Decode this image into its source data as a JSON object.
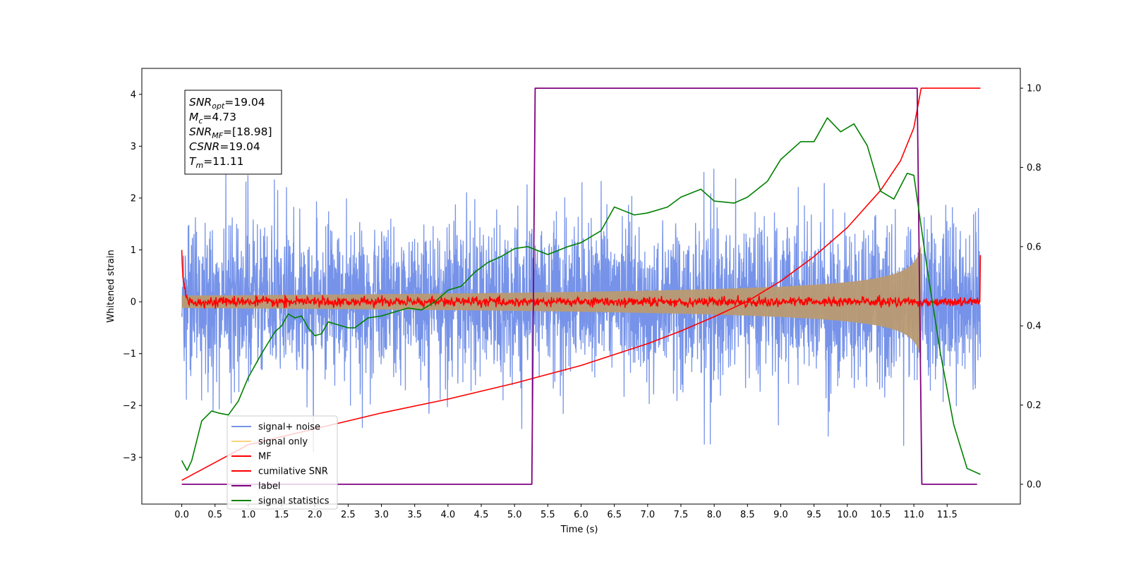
{
  "chart_data": {
    "type": "line",
    "title": "",
    "xlabel": "Time (s)",
    "ylabel": "Whitened strain",
    "ylabel_right": "",
    "xlim": [
      -0.6,
      12.6
    ],
    "ylim": [
      -3.9,
      4.5
    ],
    "ylim_right": [
      -0.05,
      1.05
    ],
    "x_ticks": [
      "0.0",
      "0.5",
      "1.0",
      "1.5",
      "2.0",
      "2.5",
      "3.0",
      "3.5",
      "4.0",
      "4.5",
      "5.0",
      "5.5",
      "6.0",
      "6.5",
      "7.0",
      "7.5",
      "8.0",
      "8.5",
      "9.0",
      "9.5",
      "10.0",
      "10.5",
      "11.0",
      "11.5"
    ],
    "y_ticks_left": [
      "−3",
      "−2",
      "−1",
      "0",
      "1",
      "2",
      "3",
      "4"
    ],
    "y_ticks_right": [
      "0.0",
      "0.2",
      "0.4",
      "0.6",
      "0.8",
      "1.0"
    ],
    "grid": false,
    "legend_position": "lower-left",
    "info_box": {
      "lines": [
        {
          "main": "SNR",
          "sub": "opt",
          "rest": "=19.04"
        },
        {
          "main": "M",
          "sub": "c",
          "rest": "=4.73"
        },
        {
          "main": "SNR",
          "sub": "MF",
          "rest": "=[18.98]"
        },
        {
          "main": "CSNR",
          "sub": "",
          "rest": "=19.04"
        },
        {
          "main": "T",
          "sub": "m",
          "rest": "=11.11"
        }
      ]
    },
    "series": [
      {
        "name": "signal+ noise",
        "color": "#4169e1",
        "axis": "left",
        "kind": "noise",
        "x_range": [
          0,
          12.0
        ],
        "envelope_low": -2.2,
        "envelope_high": 2.4
      },
      {
        "name": "signal only",
        "color": "#ffd480",
        "axis": "left",
        "kind": "chirp",
        "x_range": [
          0,
          11.11
        ],
        "amplitude_start": 0.12,
        "amplitude_end": 1.1
      },
      {
        "name": "MF",
        "color": "#ff0000",
        "axis": "left",
        "kind": "matched-filter",
        "x_range": [
          0,
          12.0
        ],
        "baseline": 0.0,
        "start_value": 1.0,
        "end_value": 0.9
      },
      {
        "name": "cumilative SNR",
        "color": "#ff0000",
        "axis": "right",
        "x": [
          0.0,
          1.0,
          2.0,
          3.0,
          4.0,
          5.0,
          6.0,
          7.0,
          7.5,
          8.0,
          8.5,
          9.0,
          9.5,
          10.0,
          10.5,
          10.8,
          11.0,
          11.11,
          11.5,
          12.0
        ],
        "y": [
          0.01,
          0.1,
          0.14,
          0.18,
          0.215,
          0.255,
          0.3,
          0.355,
          0.387,
          0.423,
          0.462,
          0.513,
          0.575,
          0.648,
          0.742,
          0.817,
          0.9,
          1.0,
          1.0,
          1.0
        ]
      },
      {
        "name": "label",
        "color": "#800080",
        "axis": "right",
        "x": [
          0.0,
          5.26,
          5.31,
          11.05,
          11.12,
          11.95
        ],
        "y": [
          0.0,
          0.0,
          1.0,
          1.0,
          0.0,
          0.0
        ]
      },
      {
        "name": "signal statistics",
        "color": "#008000",
        "axis": "right",
        "x": [
          0.0,
          0.08,
          0.15,
          0.3,
          0.45,
          0.55,
          0.7,
          0.85,
          1.0,
          1.2,
          1.4,
          1.5,
          1.6,
          1.7,
          1.8,
          1.9,
          2.0,
          2.1,
          2.2,
          2.3,
          2.5,
          2.6,
          2.8,
          3.0,
          3.2,
          3.4,
          3.6,
          3.8,
          4.0,
          4.2,
          4.4,
          4.6,
          4.8,
          5.0,
          5.2,
          5.5,
          5.8,
          6.0,
          6.3,
          6.5,
          6.8,
          7.0,
          7.3,
          7.5,
          7.8,
          8.0,
          8.3,
          8.5,
          8.8,
          9.0,
          9.3,
          9.5,
          9.7,
          9.9,
          10.1,
          10.3,
          10.5,
          10.7,
          10.9,
          11.0,
          11.2,
          11.4,
          11.6,
          11.8,
          12.0
        ],
        "y": [
          0.06,
          0.035,
          0.06,
          0.16,
          0.185,
          0.18,
          0.175,
          0.21,
          0.27,
          0.33,
          0.385,
          0.4,
          0.43,
          0.42,
          0.425,
          0.395,
          0.375,
          0.38,
          0.41,
          0.405,
          0.395,
          0.395,
          0.42,
          0.425,
          0.435,
          0.445,
          0.44,
          0.46,
          0.49,
          0.5,
          0.535,
          0.56,
          0.575,
          0.595,
          0.6,
          0.58,
          0.6,
          0.61,
          0.64,
          0.7,
          0.68,
          0.685,
          0.7,
          0.725,
          0.745,
          0.715,
          0.71,
          0.725,
          0.765,
          0.82,
          0.865,
          0.865,
          0.925,
          0.89,
          0.91,
          0.855,
          0.74,
          0.72,
          0.785,
          0.78,
          0.545,
          0.33,
          0.15,
          0.04,
          0.025
        ]
      }
    ]
  }
}
